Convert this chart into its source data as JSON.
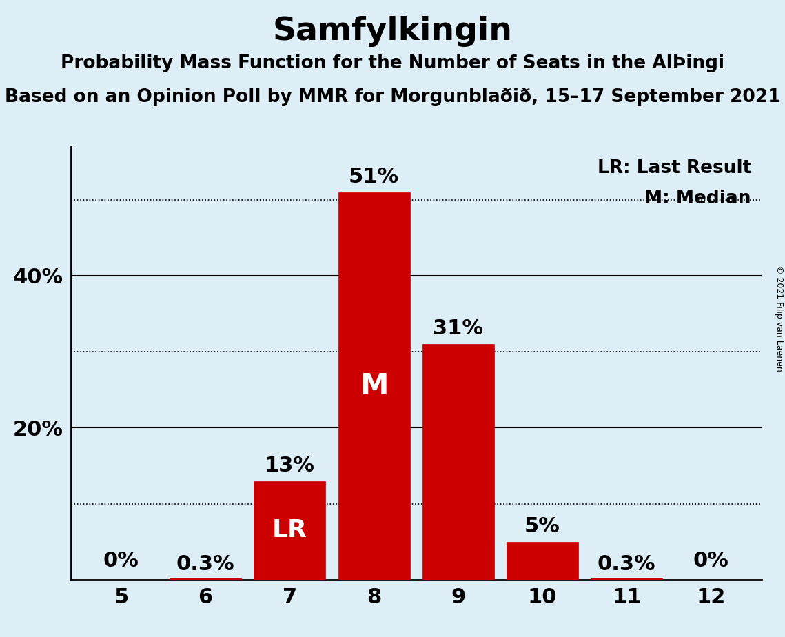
{
  "title": "Samfylkingin",
  "subtitle1": "Probability Mass Function for the Number of Seats in the AlÞingi",
  "subtitle2": "Based on an Opinion Poll by MMR for Morgunblaðið, 15–17 September 2021",
  "copyright": "© 2021 Filip van Laenen",
  "categories": [
    5,
    6,
    7,
    8,
    9,
    10,
    11,
    12
  ],
  "values": [
    0.0,
    0.3,
    13.0,
    51.0,
    31.0,
    5.0,
    0.3,
    0.0
  ],
  "labels": [
    "0%",
    "0.3%",
    "13%",
    "51%",
    "31%",
    "5%",
    "0.3%",
    "0%"
  ],
  "bar_color": "#cc0000",
  "background_color": "#ddeef7",
  "median_bar": 8,
  "lr_bar": 7,
  "ylim": [
    0,
    57
  ],
  "yticks": [
    20,
    40
  ],
  "ytick_labels": [
    "20%",
    "40%"
  ],
  "solid_gridlines": [
    20,
    40
  ],
  "dotted_gridlines": [
    10,
    30,
    50
  ],
  "title_fontsize": 34,
  "subtitle_fontsize": 19,
  "label_fontsize": 22,
  "axis_fontsize": 22,
  "legend_fontsize": 19,
  "median_label_fontsize": 30,
  "lr_label_fontsize": 26
}
